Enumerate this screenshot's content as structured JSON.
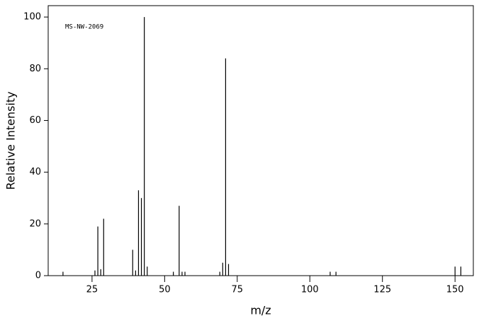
{
  "chart_data": {
    "type": "stick",
    "annotation": "MS-NW-2069",
    "x_label": "m/z",
    "y_label": "Relative Intensity",
    "x": [
      15,
      26,
      27,
      28,
      29,
      39,
      40,
      41,
      42,
      43,
      44,
      53,
      55,
      56,
      57,
      69,
      70,
      71,
      72,
      107,
      109,
      150,
      152
    ],
    "values": [
      1.5,
      2,
      19,
      2.5,
      22,
      10,
      2,
      33,
      30,
      100,
      3.5,
      1.5,
      27,
      1.5,
      1.5,
      1.5,
      5,
      84,
      4.5,
      1.5,
      1.5,
      3.5,
      3.5
    ],
    "color": "#000000",
    "xlim": [
      9.9,
      156.3
    ],
    "ylim": [
      0,
      104.4
    ],
    "xticks": [
      25,
      50,
      75,
      100,
      125,
      150
    ],
    "yticks": [
      0,
      20,
      40,
      60,
      80,
      100
    ]
  }
}
